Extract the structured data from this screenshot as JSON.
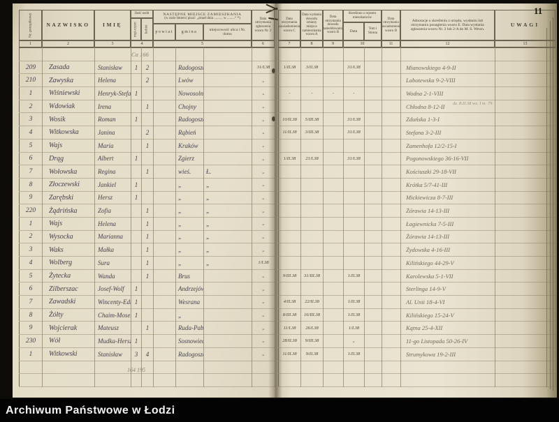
{
  "photo": {
    "page_number": "11"
  },
  "caption": {
    "text": "Archiwum Państwowe w Łodzi"
  },
  "header_left": {
    "col1": "Nr. porządkowy",
    "col2": "NAZWISKO",
    "col3": "IMIĘ",
    "col4_group": "Ilość osób",
    "col4a": "męż-czyzn",
    "col4b": "kobiet",
    "col5_group": "NASTĘPNE MIEJSCE ZAMIESZKANIA",
    "col5_sub": "(w razie śmierci pisać: „zmarł dnia .......... w .........“ *)",
    "col5a": "powiat",
    "col5b": "gmina",
    "col5c": "miejscowość ulica i Nr. domu",
    "col6": "Data otrzymania zgłoszenia wzoru Nr. 2",
    "numbers": [
      "1",
      "2",
      "3",
      "4",
      "5",
      "6"
    ]
  },
  "header_right": {
    "col7": "Data otrzymania zawiadomienia wzoru C",
    "col8": "Data wydania dowodu zmiany miejsca zamieszkania wzoru A",
    "col9": "Data otrzymania dowodu zameldowania wzoru B",
    "col10_group": "Skreślono z rejestru mieszkańców",
    "col10a": "Data",
    "col10b": "Tom i Strona",
    "col11": "Data otrzymania zawiadomienia wzoru D",
    "col12": "Adnotacje o skreśleniu z urzędu, wysłaniu lub otrzymaniu ponaglenia wzoru E. Data wysłania zgłoszenia wzoru Nr. 2 lub 2-A do M. S. Wewn.",
    "col13": "UWAGI",
    "numbers": [
      "7",
      "8",
      "9",
      "10",
      "11",
      "12",
      "13"
    ]
  },
  "ledger_left": {
    "rows": [
      [
        "",
        "",
        "",
        "",
        "",
        "",
        "",
        "",
        ""
      ],
      [
        "209",
        "Zasada",
        "Stanisław",
        "1",
        "2",
        "",
        "Radogoszcz",
        "",
        "31/I.38"
      ],
      [
        "210",
        "Zawyska",
        "Helena",
        "",
        "2",
        "",
        "Lwów",
        "",
        "„"
      ],
      [
        "1",
        "Wiśniewski",
        "Henryk-Stefan",
        "1",
        "",
        "",
        "Nowosolna",
        "",
        "„"
      ],
      [
        "2",
        "Wdowiak",
        "Irena",
        "",
        "1",
        "",
        "Chojny",
        "",
        "„"
      ],
      [
        "3",
        "Wosik",
        "Roman",
        "1",
        "",
        "",
        "Radogoszcz",
        "",
        "„"
      ],
      [
        "4",
        "Witkowska",
        "Janina",
        "",
        "2",
        "",
        "Rąbień",
        "",
        "„"
      ],
      [
        "5",
        "Wajs",
        "Maria",
        "",
        "1",
        "",
        "Kraków",
        "",
        "„"
      ],
      [
        "6",
        "Drąg",
        "Albert",
        "1",
        "",
        "",
        "Zgierz",
        "",
        "„"
      ],
      [
        "7",
        "Wołowska",
        "Regina",
        "",
        "1",
        "",
        "wieś.",
        "Ł.",
        "„"
      ],
      [
        "8",
        "Złoczewski",
        "Jankiel",
        "1",
        "",
        "",
        "„",
        "„",
        "„"
      ],
      [
        "9",
        "Zarębski",
        "Hersz",
        "1",
        "",
        "",
        "„",
        "„",
        "„"
      ],
      [
        "220",
        "Żądrińska",
        "Zofia",
        "",
        "1",
        "",
        "„",
        "„",
        "„"
      ],
      [
        "1",
        "Wajs",
        "Helena",
        "",
        "1",
        "",
        "„",
        "„",
        "„"
      ],
      [
        "2",
        "Wysocka",
        "Marianna",
        "",
        "1",
        "",
        "„",
        "„",
        "„"
      ],
      [
        "3",
        "Waks",
        "Małka",
        "",
        "1",
        "",
        "„",
        "„",
        "„"
      ],
      [
        "4",
        "Wolberg",
        "Sura",
        "",
        "1",
        "",
        "„",
        "„",
        "1/I.38"
      ],
      [
        "5",
        "Żytecka",
        "Wanda",
        "",
        "1",
        "",
        "Brus",
        "",
        "„"
      ],
      [
        "6",
        "Zilberszac",
        "Josef-Wolf",
        "1",
        "",
        "",
        "Andrzejów",
        "",
        "„"
      ],
      [
        "7",
        "Zawadski",
        "Wincenty-Edmund",
        "1",
        "",
        "",
        "Wesrana",
        "",
        "„"
      ],
      [
        "8",
        "Żółty",
        "Chaim-Mosek",
        "1",
        "",
        "",
        "„",
        "",
        "„"
      ],
      [
        "9",
        "Wojcierak",
        "Mateusz",
        "",
        "1",
        "",
        "Ruda-Pabianicka",
        "",
        "„"
      ],
      [
        "230",
        "Wół",
        "Mudka-Hersz",
        "1",
        "",
        "",
        "Sosnowiec",
        "",
        "„"
      ],
      [
        "1",
        "Witkowski",
        "Stanisław",
        "3",
        "4",
        "",
        "Radogoszcz",
        "",
        "„"
      ],
      [
        "",
        "",
        "",
        "",
        "",
        "",
        "",
        "",
        ""
      ],
      [
        "",
        "",
        "",
        "",
        "",
        "",
        "",
        "",
        ""
      ]
    ]
  },
  "ledger_right": {
    "rows": [
      [
        "",
        "",
        "",
        "",
        "",
        "",
        "",
        ""
      ],
      [
        "1/II.38",
        "3/II.38",
        "",
        "31/I.38",
        "",
        "",
        "Mianowskiego 4-9-II",
        ""
      ],
      [
        "",
        "",
        "",
        "",
        "",
        "",
        "Labotewska 9-2-VIII",
        ""
      ],
      [
        "-",
        "-",
        "-",
        "-",
        "",
        "",
        "Wodna 2-1-VIII",
        ""
      ],
      [
        "",
        "",
        "",
        "",
        "",
        "",
        "Chłodna 8-12-II",
        ""
      ],
      [
        "10/II.38",
        "5/III.38",
        "",
        "31/I.38",
        "",
        "",
        "Zduńska 1-3-I",
        ""
      ],
      [
        "11/II.38",
        "3/III.38",
        "",
        "31/I.38",
        "",
        "",
        "Stefana 3-2-III",
        ""
      ],
      [
        "",
        "",
        "",
        "",
        "",
        "",
        "Zamenhofa 12/2-15-I",
        ""
      ],
      [
        "1/II.38",
        "21/I.38",
        "",
        "31/I.38",
        "",
        "",
        "Pogonowskiego 36-16-VII",
        ""
      ],
      [
        "",
        "",
        "",
        "",
        "",
        "",
        "Kościuszki 29-18-VII",
        ""
      ],
      [
        "",
        "",
        "",
        "",
        "",
        "",
        "Krótka 5/7-41-III",
        ""
      ],
      [
        "",
        "",
        "",
        "",
        "",
        "",
        "Mickiewicza 8-7-III",
        ""
      ],
      [
        "",
        "",
        "",
        "",
        "",
        "",
        "Żórawia 14-13-III",
        ""
      ],
      [
        "",
        "",
        "",
        "",
        "",
        "",
        "Łagiewnicka 7-5-III",
        ""
      ],
      [
        "",
        "",
        "",
        "",
        "",
        "",
        "Żórawia 14-13-III",
        ""
      ],
      [
        "",
        "",
        "",
        "",
        "",
        "",
        "Żydowska 4-16-III",
        ""
      ],
      [
        "",
        "",
        "",
        "",
        "",
        "",
        "Kilińskiego 44-29-V",
        ""
      ],
      [
        "9/III.38",
        "31/III.38",
        "",
        "1/II.38",
        "",
        "",
        "Karolewska 5-1-VII",
        ""
      ],
      [
        "",
        "",
        "",
        "",
        "",
        "",
        "Sterlinga 14-9-V",
        ""
      ],
      [
        "4/II.38",
        "22/II.38",
        "",
        "1/II.38",
        "",
        "",
        "Al. Unii 18-4-VI",
        ""
      ],
      [
        "8/III.38",
        "16/III.38",
        "",
        "1/II.38",
        "",
        "",
        "Kilińskiego 15-24-V",
        ""
      ],
      [
        "11/I.38",
        "26/I.38",
        "",
        "1/I.38",
        "",
        "",
        "Kątna 25-4-XII",
        ""
      ],
      [
        "28/II.38",
        "9/III.38",
        "",
        "„",
        "",
        "",
        "11-go Listopada 50-26-IV",
        ""
      ],
      [
        "11/II.38",
        "9/II.38",
        "",
        "1/II.38",
        "",
        "",
        "Strumykowa 19-2-III",
        ""
      ],
      [
        "",
        "",
        "",
        "",
        "",
        "",
        "",
        ""
      ],
      [
        "",
        "",
        "",
        "",
        "",
        "",
        "",
        ""
      ]
    ]
  },
  "pencil_notes": {
    "top": "Ca 166",
    "totals": "164 195",
    "uwagi": "dz. 8.II.38 wz. I m. 79"
  }
}
